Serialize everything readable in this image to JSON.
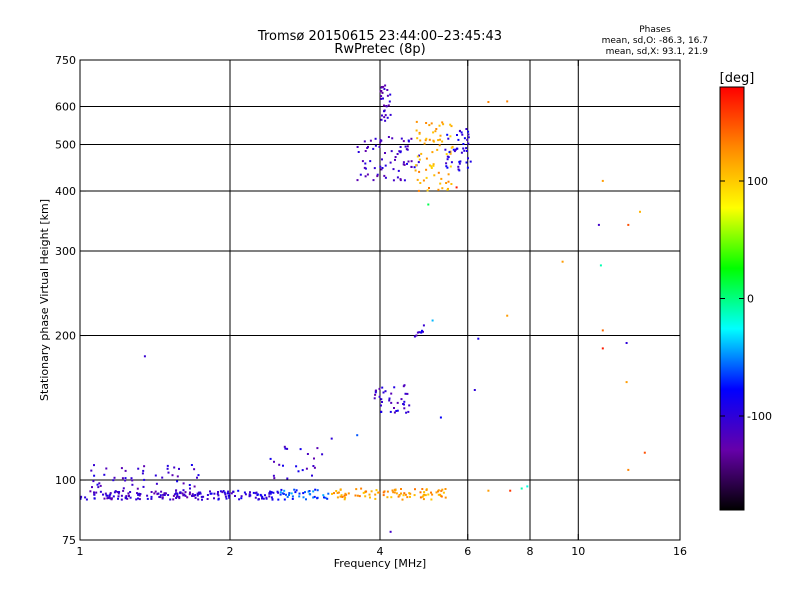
{
  "chart_data": {
    "type": "scatter",
    "title": "Tromsø 20150615 23:44:00–23:45:43",
    "subtitle": "RwPretec (8p)",
    "phases_box": {
      "title": "Phases",
      "o_line": "mean, sd,O: -86.3, 16.7",
      "x_line": "mean, sd,X:  93.1, 21.9"
    },
    "xlabel": "Frequency [MHz]",
    "ylabel": "Stationary phase Virtual Height [km]",
    "x_scale": "log2",
    "y_scale": "log",
    "xlim": [
      1,
      16
    ],
    "ylim": [
      75,
      750
    ],
    "x_ticks": [
      1,
      2,
      4,
      6,
      8,
      10,
      16
    ],
    "x_tick_labels": [
      "1",
      "2",
      "4",
      "6",
      "8",
      "10",
      "16"
    ],
    "y_ticks": [
      75,
      100,
      200,
      300,
      400,
      500,
      600,
      750
    ],
    "y_tick_labels": [
      "75",
      "100",
      "200",
      "300",
      "400",
      "500",
      "600",
      "750"
    ],
    "grid": true,
    "colorbar": {
      "label": "[deg]",
      "range": [
        -180,
        180
      ],
      "ticks": [
        100,
        0,
        -100
      ],
      "tick_labels": [
        "100",
        "0",
        "-100"
      ],
      "colors": [
        "#000000",
        "#6600aa",
        "#0000ff",
        "#00ffff",
        "#00ff00",
        "#ffff00",
        "#ff8800",
        "#ff0000"
      ]
    },
    "clusters": [
      {
        "x": [
          1.0,
          1.75
        ],
        "y": [
          91,
          95
        ],
        "phase": -110,
        "count": 120
      },
      {
        "x": [
          1.05,
          1.75
        ],
        "y": [
          95,
          108
        ],
        "phase": -105,
        "count": 50
      },
      {
        "x": [
          1.75,
          2.5
        ],
        "y": [
          91,
          95
        ],
        "phase": -100,
        "count": 70
      },
      {
        "x": [
          2.5,
          3.2
        ],
        "y": [
          91,
          96
        ],
        "phase": -60,
        "count": 40
      },
      {
        "x": [
          3.2,
          5.5
        ],
        "y": [
          91,
          96
        ],
        "phase": 120,
        "count": 90
      },
      {
        "x": [
          2.4,
          3.1
        ],
        "y": [
          100,
          118
        ],
        "phase": -105,
        "count": 22
      },
      {
        "x": [
          3.9,
          4.6
        ],
        "y": [
          138,
          158
        ],
        "phase": -105,
        "count": 38
      },
      {
        "x": [
          4.0,
          4.2
        ],
        "y": [
          560,
          665
        ],
        "phase": -115,
        "count": 28
      },
      {
        "x": [
          3.6,
          4.8
        ],
        "y": [
          420,
          520
        ],
        "phase": -110,
        "count": 75
      },
      {
        "x": [
          4.7,
          5.6
        ],
        "y": [
          400,
          560
        ],
        "phase": 115,
        "count": 70
      },
      {
        "x": [
          5.4,
          6.1
        ],
        "y": [
          440,
          540
        ],
        "phase": -95,
        "count": 45
      },
      {
        "x": [
          4.7,
          4.9
        ],
        "y": [
          198,
          206
        ],
        "phase": -100,
        "count": 8
      }
    ],
    "points": [
      {
        "x": 1.35,
        "y": 181,
        "phase": -105
      },
      {
        "x": 3.2,
        "y": 122,
        "phase": -100
      },
      {
        "x": 3.6,
        "y": 124,
        "phase": -60
      },
      {
        "x": 4.9,
        "y": 210,
        "phase": -105
      },
      {
        "x": 5.1,
        "y": 215,
        "phase": -40
      },
      {
        "x": 5.3,
        "y": 135,
        "phase": -80
      },
      {
        "x": 6.3,
        "y": 197,
        "phase": -90
      },
      {
        "x": 6.2,
        "y": 154,
        "phase": -100
      },
      {
        "x": 5.0,
        "y": 375,
        "phase": 10
      },
      {
        "x": 6.6,
        "y": 613,
        "phase": 130
      },
      {
        "x": 7.2,
        "y": 615,
        "phase": 130
      },
      {
        "x": 7.2,
        "y": 220,
        "phase": 120
      },
      {
        "x": 9.3,
        "y": 285,
        "phase": 120
      },
      {
        "x": 11.2,
        "y": 420,
        "phase": 120
      },
      {
        "x": 11.0,
        "y": 340,
        "phase": -110
      },
      {
        "x": 12.6,
        "y": 340,
        "phase": 150
      },
      {
        "x": 13.3,
        "y": 362,
        "phase": 110
      },
      {
        "x": 11.1,
        "y": 280,
        "phase": -10
      },
      {
        "x": 11.2,
        "y": 205,
        "phase": 140
      },
      {
        "x": 11.2,
        "y": 188,
        "phase": 170
      },
      {
        "x": 12.5,
        "y": 193,
        "phase": -100
      },
      {
        "x": 12.5,
        "y": 160,
        "phase": 120
      },
      {
        "x": 13.6,
        "y": 114,
        "phase": 150
      },
      {
        "x": 12.6,
        "y": 105,
        "phase": 130
      },
      {
        "x": 6.6,
        "y": 95,
        "phase": 120
      },
      {
        "x": 7.3,
        "y": 95,
        "phase": 160
      },
      {
        "x": 7.7,
        "y": 96,
        "phase": -10
      },
      {
        "x": 7.9,
        "y": 97,
        "phase": -20
      },
      {
        "x": 4.2,
        "y": 78,
        "phase": -110
      },
      {
        "x": 5.7,
        "y": 407,
        "phase": 170
      }
    ]
  }
}
